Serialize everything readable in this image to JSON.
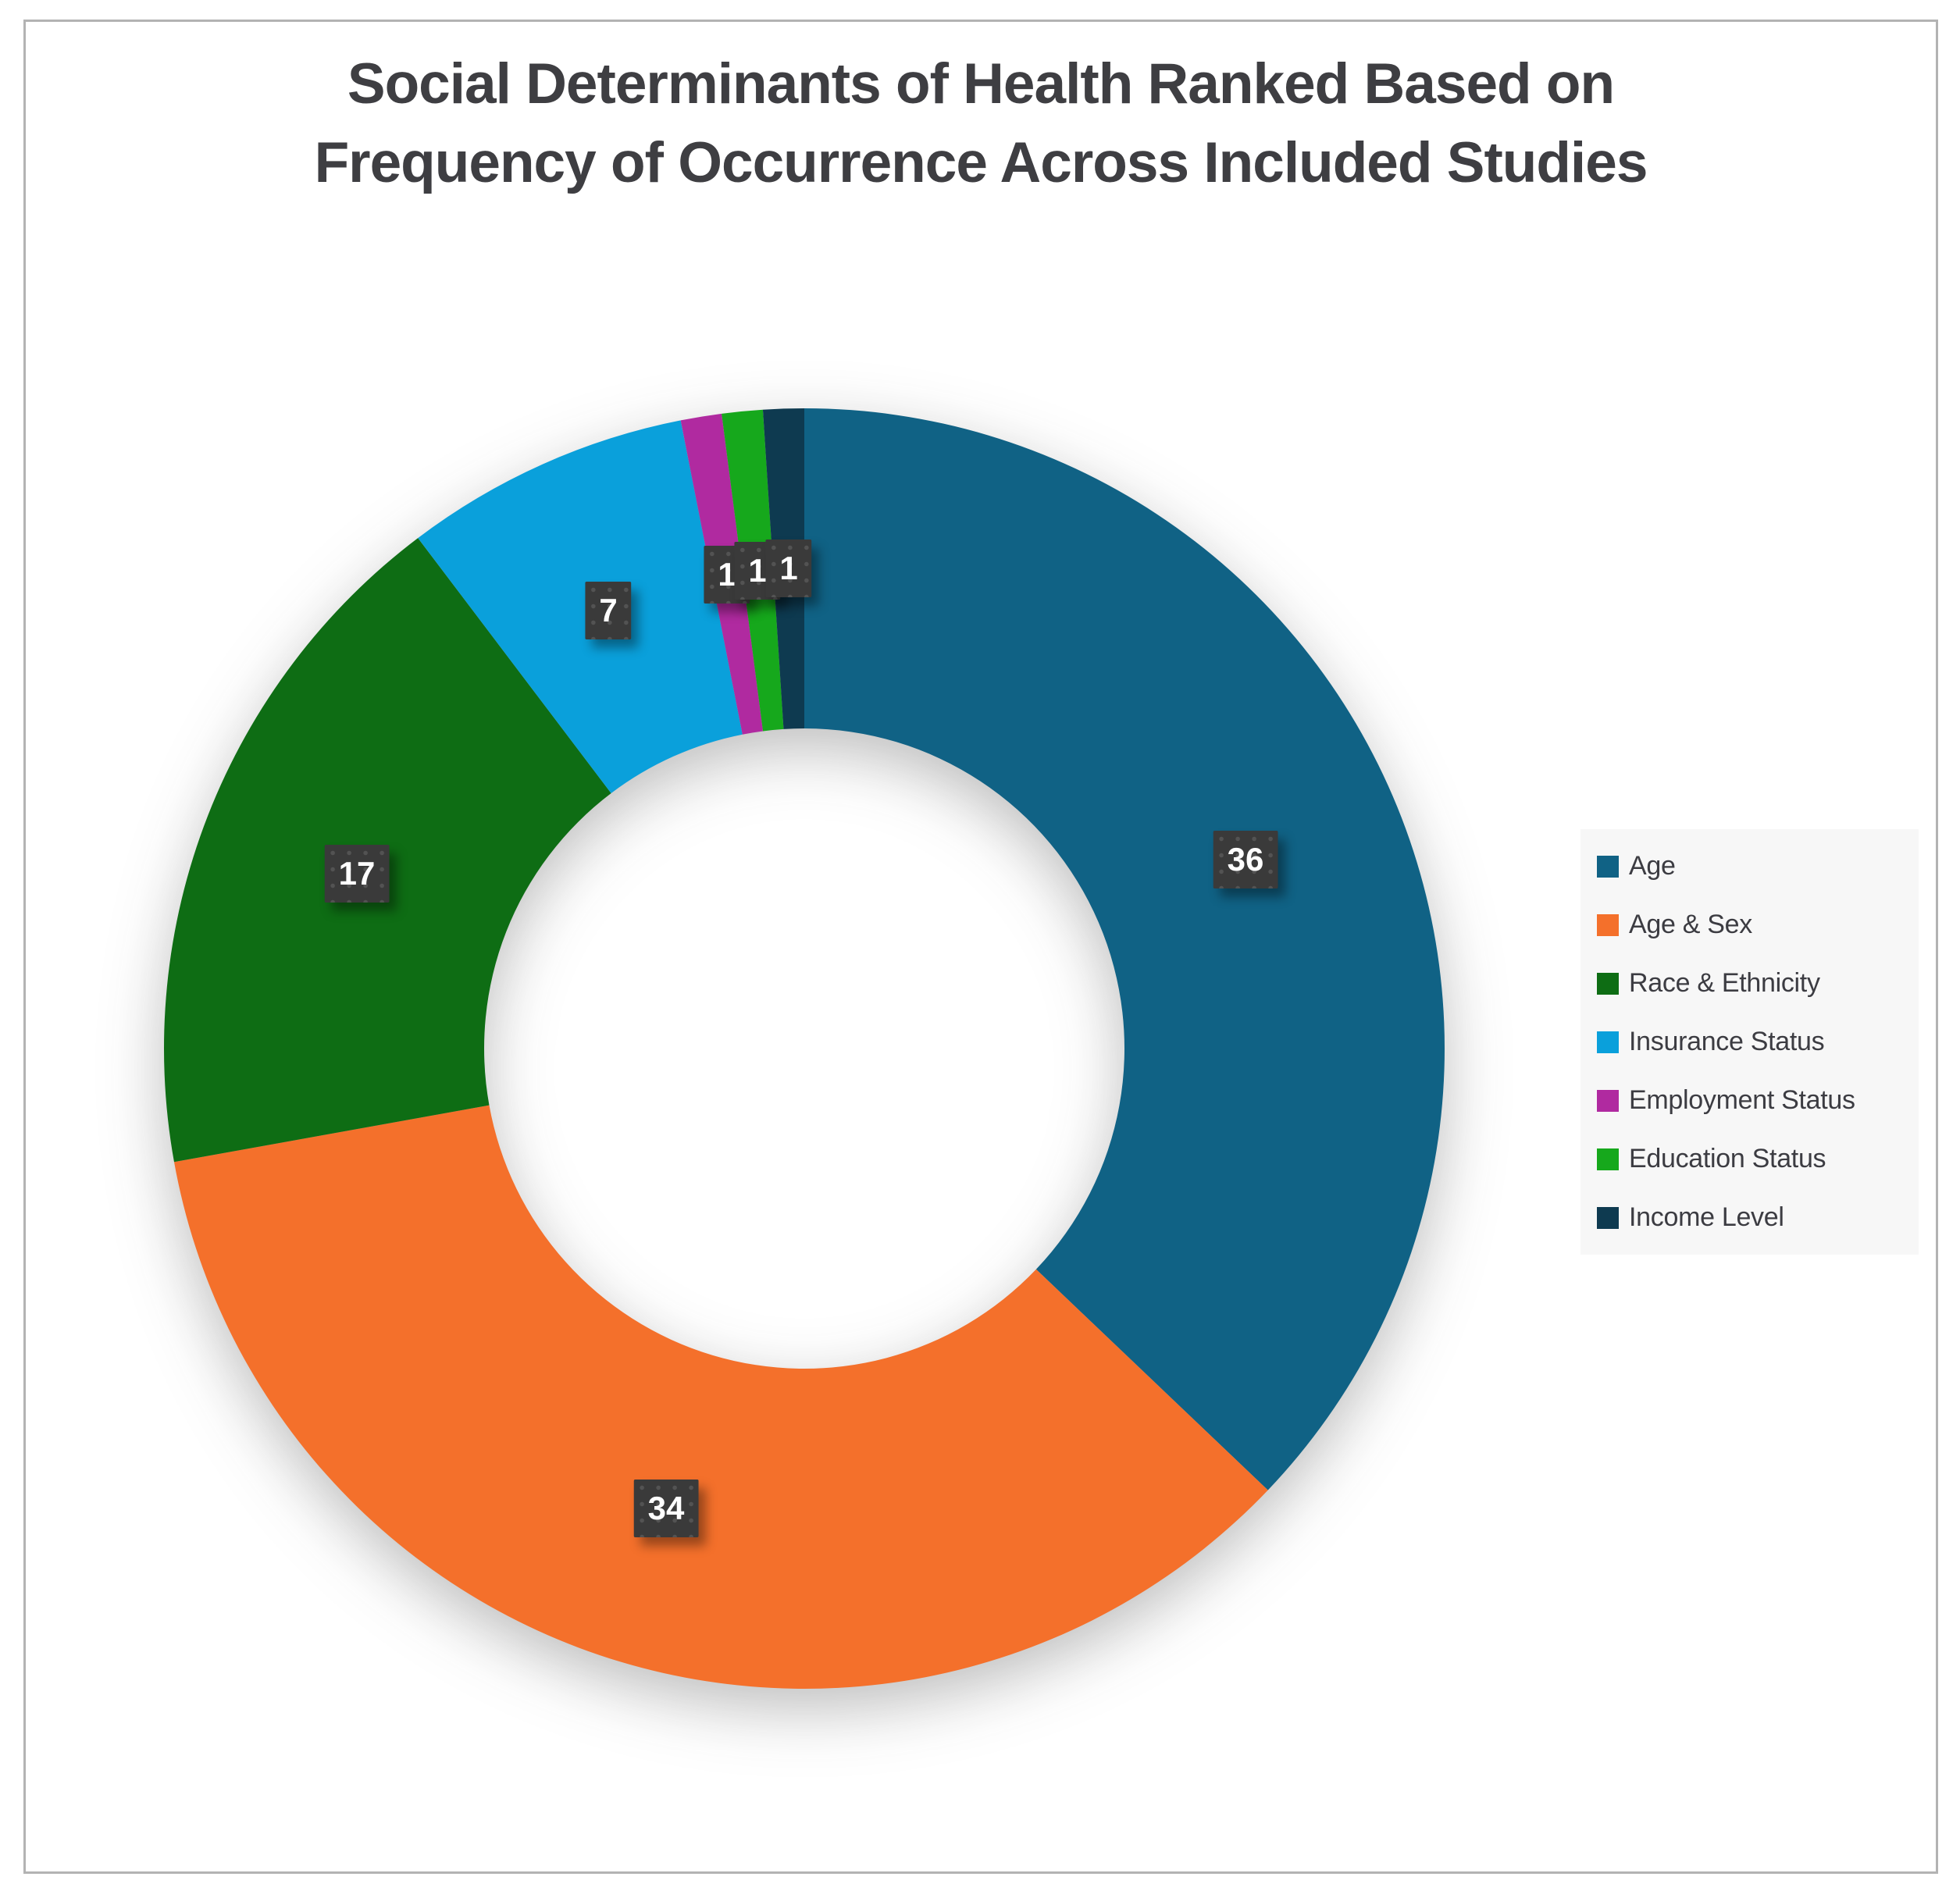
{
  "page": {
    "background_color": "#FFFFFF",
    "frame_border_color": "#B3B3B3"
  },
  "chart_data": {
    "type": "pie",
    "subtype": "donut",
    "title_lines": [
      "Social Determinants of Health Ranked Based on",
      "Frequency of Occurrence Across Included Studies"
    ],
    "categories": [
      "Age",
      "Age & Sex",
      "Race & Ethnicity",
      "Insurance Status",
      "Employment Status",
      "Education Status",
      "Income Level"
    ],
    "values": [
      36,
      34,
      17,
      7,
      1,
      1,
      1
    ],
    "colors": [
      "#106285",
      "#F4702B",
      "#0E6D14",
      "#0AA0DB",
      "#B02AA0",
      "#16A81C",
      "#0E3A50"
    ],
    "total": 97,
    "start_angle_deg": 0,
    "direction": "clockwise",
    "hole_ratio": 0.5,
    "legend_position": "right",
    "legend_background": "#F7F7F7",
    "data_labels_shown": true,
    "data_label_background": "#3A3A3A",
    "data_label_text_color": "#FFFFFF",
    "title_color": "#3E3E42"
  }
}
